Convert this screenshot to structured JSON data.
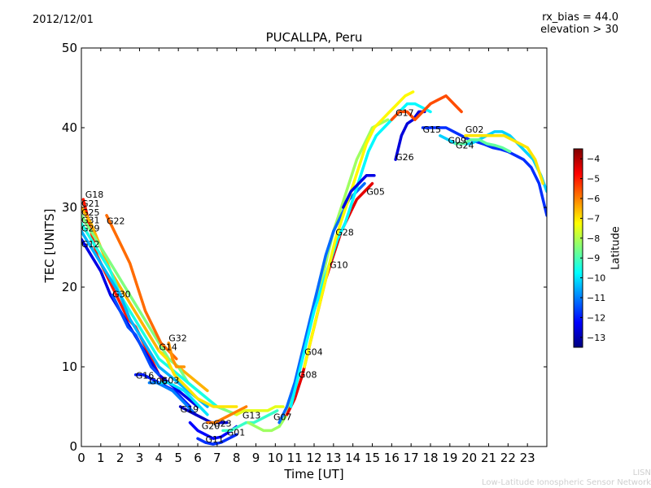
{
  "header": {
    "date": "2012/12/01",
    "rx_bias": "rx_bias = 44.0",
    "elevation": "elevation > 30"
  },
  "footer": {
    "line1": "LISN",
    "line2": "Low-Latitude Ionospheric Sensor Network"
  },
  "colorbar": {
    "label": "Latitude",
    "min": -13.5,
    "max": -3.5,
    "ticks": [
      -4,
      -5,
      -6,
      -7,
      -8,
      -9,
      -10,
      -11,
      -12,
      -13
    ],
    "colors": [
      "#00007f",
      "#0000ff",
      "#007fff",
      "#00ffff",
      "#7fff7f",
      "#ffff00",
      "#ff7f00",
      "#ff0000",
      "#7f0000"
    ]
  },
  "chart_data": {
    "type": "line",
    "title": "PUCALLPA, Peru",
    "xlabel": "Time [UT]",
    "ylabel": "TEC [UNITS]",
    "xlim": [
      0,
      24
    ],
    "ylim": [
      0,
      50
    ],
    "xticks": [
      0,
      1,
      2,
      3,
      4,
      5,
      6,
      7,
      8,
      9,
      10,
      11,
      12,
      13,
      14,
      15,
      16,
      17,
      18,
      19,
      20,
      21,
      22,
      23
    ],
    "yticks": [
      0,
      10,
      20,
      30,
      40,
      50
    ],
    "series": [
      {
        "name": "G18",
        "lat": -5.0,
        "label_at": [
          0.2,
          31.2
        ],
        "x": [
          0.1,
          0.4,
          0.8,
          1.2,
          1.6,
          2.0,
          2.4,
          2.8,
          3.2,
          3.6,
          4.0,
          4.4
        ],
        "y": [
          31,
          28,
          24,
          22,
          20,
          18,
          16,
          15,
          13,
          11,
          9,
          8
        ]
      },
      {
        "name": "G21",
        "lat": -6.5,
        "label_at": [
          0.0,
          30.1
        ],
        "x": [
          0.0,
          0.5,
          1.0,
          1.5,
          2.0,
          2.5,
          3.0,
          3.5,
          4.0,
          4.5,
          5.0,
          5.5,
          6.0,
          6.5
        ],
        "y": [
          30,
          28,
          25,
          22,
          20,
          18,
          16,
          14,
          12,
          11,
          10,
          9,
          8,
          7
        ]
      },
      {
        "name": "G25",
        "lat": -8.5,
        "label_at": [
          0.0,
          29.0
        ],
        "x": [
          0.0,
          0.5,
          1.0,
          1.5,
          2.0,
          2.5,
          3.0,
          3.5,
          4.0,
          4.5,
          5.0,
          5.5,
          6.0,
          6.5,
          7.0,
          7.5,
          8.0
        ],
        "y": [
          29,
          27,
          25,
          23,
          21,
          19,
          17,
          15,
          13,
          11,
          10,
          8,
          7,
          6,
          5,
          4.5,
          4
        ]
      },
      {
        "name": "G31",
        "lat": -9.5,
        "label_at": [
          0.0,
          28.0
        ],
        "x": [
          0.0,
          0.5,
          1.0,
          1.5,
          2.0,
          2.5,
          3.0,
          3.5,
          4.0,
          4.5,
          5.0,
          5.5,
          6.0,
          6.5,
          7.0
        ],
        "y": [
          28,
          26,
          24,
          22,
          19,
          17,
          15,
          13,
          11,
          10,
          9,
          8,
          7,
          6,
          5
        ]
      },
      {
        "name": "G29",
        "lat": -10.5,
        "label_at": [
          0.0,
          27.0
        ],
        "x": [
          0.0,
          0.5,
          1.0,
          1.5,
          2.0,
          2.5,
          3.0,
          3.5,
          4.0,
          4.5,
          5.0,
          5.5,
          6.0,
          6.5
        ],
        "y": [
          27,
          25,
          23,
          21,
          19,
          16,
          14,
          12,
          10,
          9,
          8,
          7,
          6,
          5
        ]
      },
      {
        "name": "G22",
        "lat": -5.8,
        "label_at": [
          1.3,
          27.9
        ],
        "x": [
          1.3,
          1.7,
          2.1,
          2.5,
          2.9,
          3.3,
          3.7,
          4.1,
          4.5,
          4.9
        ],
        "y": [
          29,
          27,
          25,
          23,
          20,
          17,
          15,
          13,
          12,
          11
        ]
      },
      {
        "name": "G12",
        "lat": -12.5,
        "label_at": [
          0.0,
          25.0
        ],
        "x": [
          0.0,
          0.5,
          1.0,
          1.5,
          2.0,
          2.5,
          3.0,
          3.5,
          4.0,
          4.5,
          5.0,
          5.5,
          6.0
        ],
        "y": [
          26,
          24,
          22,
          19,
          17,
          15,
          13,
          11,
          9,
          8,
          7,
          6,
          5
        ]
      },
      {
        "name": "G30",
        "lat": -11.5,
        "label_at": [
          1.6,
          18.7
        ],
        "x": [
          1.6,
          2.0,
          2.4,
          2.8,
          3.2,
          3.6,
          4.0
        ],
        "y": [
          19,
          17,
          15,
          14,
          12,
          10,
          9
        ]
      },
      {
        "name": "G32",
        "lat": -6.2,
        "label_at": [
          4.5,
          13.2
        ],
        "x": [
          4.5,
          4.7,
          4.9,
          5.1,
          5.3
        ],
        "y": [
          13,
          11,
          10,
          10,
          10
        ]
      },
      {
        "name": "G14",
        "lat": -7.0,
        "label_at": [
          4.0,
          12.1
        ],
        "x": [
          4.0,
          4.4,
          4.8,
          5.2,
          5.6,
          6.0,
          6.4,
          6.8,
          7.2,
          7.6,
          8.0
        ],
        "y": [
          12,
          11,
          9,
          8,
          7,
          6,
          5.5,
          5,
          5,
          5,
          5
        ]
      },
      {
        "name": "G16",
        "lat": -12.0,
        "label_at": [
          2.8,
          8.5
        ],
        "x": [
          2.8,
          3.2,
          3.6,
          4.0,
          4.4,
          4.8,
          5.2,
          5.6
        ],
        "y": [
          9,
          9,
          8.5,
          8,
          7.5,
          7,
          6,
          5
        ]
      },
      {
        "name": "G06",
        "lat": -11.0,
        "label_at": [
          3.5,
          7.8
        ],
        "x": [
          3.5,
          3.9,
          4.3,
          4.7,
          5.1,
          5.5,
          5.9
        ],
        "y": [
          8,
          8,
          7.5,
          7,
          6,
          5,
          4
        ]
      },
      {
        "name": "G03",
        "lat": -10.0,
        "label_at": [
          4.1,
          7.9
        ],
        "x": [
          4.1,
          4.5,
          4.9,
          5.3,
          5.7,
          6.1,
          6.5
        ],
        "y": [
          8,
          8,
          7.5,
          7,
          6,
          5,
          4
        ]
      },
      {
        "name": "G19",
        "lat": -12.8,
        "label_at": [
          5.1,
          4.3
        ],
        "x": [
          5.1,
          5.5,
          5.9,
          6.3,
          6.7,
          7.1,
          7.5
        ],
        "y": [
          5,
          4.5,
          4,
          3.5,
          3,
          3,
          3
        ]
      },
      {
        "name": "G20",
        "lat": -12.2,
        "label_at": [
          6.2,
          2.2
        ],
        "x": [
          5.6,
          6.0,
          6.4,
          6.8,
          7.2,
          7.6,
          8.0
        ],
        "y": [
          3,
          2,
          1.5,
          1,
          1.2,
          1.8,
          2.5
        ]
      },
      {
        "name": "G23",
        "lat": -6.0,
        "label_at": [
          6.8,
          2.5
        ],
        "x": [
          6.5,
          6.9,
          7.3,
          7.7,
          8.1,
          8.5
        ],
        "y": [
          3,
          3,
          3.5,
          4,
          4.5,
          5
        ]
      },
      {
        "name": "G11",
        "lat": -11.8,
        "label_at": [
          6.4,
          0.5
        ],
        "x": [
          6.0,
          6.4,
          6.8,
          7.2,
          7.6,
          8.0
        ],
        "y": [
          1,
          0.5,
          0.3,
          0.5,
          1,
          1.5
        ]
      },
      {
        "name": "G01",
        "lat": -9.2,
        "label_at": [
          7.5,
          1.4
        ],
        "x": [
          7.3,
          7.7,
          8.1,
          8.5,
          8.9,
          9.3,
          9.7,
          10.1
        ],
        "y": [
          2,
          2,
          2.5,
          3,
          3,
          3.5,
          4,
          4.5
        ]
      },
      {
        "name": "G13",
        "lat": -7.5,
        "label_at": [
          8.3,
          3.5
        ],
        "x": [
          8.0,
          8.4,
          8.8,
          9.2,
          9.6,
          10.0,
          10.4
        ],
        "y": [
          4,
          4.5,
          4.5,
          4.5,
          4.5,
          5,
          5
        ]
      },
      {
        "name": "G07",
        "lat": -8.2,
        "label_at": [
          9.9,
          3.3
        ],
        "x": [
          8.6,
          9.0,
          9.4,
          9.8,
          10.2,
          10.6,
          11.0,
          11.4,
          11.8,
          12.2,
          12.6,
          13.0,
          13.4,
          13.8,
          14.2,
          14.6,
          15.0,
          15.4,
          15.8
        ],
        "y": [
          3,
          2.5,
          2,
          2,
          2.5,
          4,
          7,
          11,
          15,
          19,
          23,
          27,
          30,
          33,
          36,
          38,
          40,
          40.5,
          41
        ]
      },
      {
        "name": "G08",
        "lat": -4.5,
        "label_at": [
          11.2,
          8.6
        ],
        "x": [
          10.6,
          11.0,
          11.4,
          11.8,
          12.2,
          12.6,
          13.0,
          13.4,
          13.8,
          14.2,
          14.6,
          15.0
        ],
        "y": [
          4,
          6,
          9,
          13,
          17,
          21,
          24,
          27,
          29,
          31,
          32,
          33
        ]
      },
      {
        "name": "G04",
        "lat": -11.2,
        "label_at": [
          11.5,
          11.5
        ],
        "x": [
          10.2,
          10.6,
          11.0,
          11.4,
          11.8,
          12.2,
          12.6,
          13.0,
          13.4,
          13.8,
          14.2,
          14.6
        ],
        "y": [
          3,
          5,
          8,
          12,
          16,
          20,
          24,
          27,
          29,
          31,
          32,
          33
        ]
      },
      {
        "name": "G10",
        "lat": -9.8,
        "label_at": [
          12.8,
          22.4
        ],
        "x": [
          10.8,
          11.2,
          11.6,
          12.0,
          12.4,
          12.8,
          13.2,
          13.6,
          14.0,
          14.4,
          14.8,
          15.2,
          15.6,
          16.0,
          16.4,
          16.8,
          17.2,
          17.6,
          18.0
        ],
        "y": [
          5,
          9,
          13,
          17,
          20,
          23,
          26,
          28,
          31,
          34,
          37,
          39,
          40,
          41,
          42,
          43,
          43,
          42.5,
          42
        ]
      },
      {
        "name": "G28",
        "lat": -7.2,
        "label_at": [
          13.1,
          26.5
        ],
        "x": [
          11.5,
          11.9,
          12.3,
          12.7,
          13.1,
          13.5,
          13.9,
          14.3,
          14.7,
          15.1,
          15.5,
          15.9,
          16.3,
          16.7,
          17.1
        ],
        "y": [
          10,
          14,
          18,
          22,
          26,
          29,
          32,
          35,
          38,
          40,
          41,
          42,
          43,
          44,
          44.5
        ]
      },
      {
        "name": "G05",
        "lat": -12.5,
        "label_at": [
          14.7,
          31.6
        ],
        "x": [
          13.5,
          13.9,
          14.3,
          14.7,
          15.1
        ],
        "y": [
          30,
          32,
          33,
          34,
          34
        ]
      },
      {
        "name": "G26",
        "lat": -12.6,
        "label_at": [
          16.2,
          35.9
        ],
        "x": [
          16.2,
          16.5,
          16.8,
          17.1,
          17.4,
          17.7
        ],
        "y": [
          36,
          39,
          40.5,
          41,
          42,
          42
        ]
      },
      {
        "name": "G17",
        "lat": -5.5,
        "label_at": [
          16.2,
          41.5
        ],
        "x": [
          16.0,
          16.4,
          16.8,
          17.2,
          17.6,
          18.0,
          18.4,
          18.8,
          19.2,
          19.6
        ],
        "y": [
          41,
          42,
          42,
          41,
          42,
          43,
          43.5,
          44,
          43,
          42
        ]
      },
      {
        "name": "G15",
        "lat": -11.8,
        "label_at": [
          17.6,
          39.4
        ],
        "x": [
          17.6,
          18.0,
          18.4,
          18.8,
          19.2,
          19.6,
          20.0,
          20.4,
          20.8,
          21.2,
          21.6,
          22.0,
          22.4,
          22.8,
          23.2,
          23.6,
          24.0
        ],
        "y": [
          40,
          40,
          40,
          40,
          39.5,
          39,
          38.5,
          38.2,
          37.9,
          37.5,
          37.3,
          37,
          36.5,
          36,
          35,
          33,
          29
        ]
      },
      {
        "name": "G09",
        "lat": -10.2,
        "label_at": [
          18.9,
          38.0
        ],
        "x": [
          18.5,
          18.9,
          19.3,
          19.7,
          20.1,
          20.5,
          20.9,
          21.3,
          21.7,
          22.1,
          22.5,
          22.9,
          23.3,
          23.7,
          24.0
        ],
        "y": [
          39,
          38.5,
          38,
          38,
          38,
          38.5,
          39,
          39.5,
          39.5,
          39,
          38,
          37,
          36,
          34,
          32
        ]
      },
      {
        "name": "G24",
        "lat": -8.8,
        "label_at": [
          19.3,
          37.4
        ],
        "x": [
          19.3,
          19.7,
          20.1,
          20.5,
          20.9,
          21.3,
          21.7,
          22.1
        ],
        "y": [
          38,
          38,
          38.5,
          38.5,
          38,
          37.8,
          37.5,
          37
        ]
      },
      {
        "name": "G02",
        "lat": -7.0,
        "label_at": [
          19.8,
          39.4
        ],
        "x": [
          19.8,
          20.2,
          20.6,
          21.0,
          21.4,
          21.8,
          22.2,
          22.6,
          23.0,
          23.4,
          23.8
        ],
        "y": [
          39,
          39,
          39,
          39,
          39,
          39,
          38.5,
          38,
          37.5,
          36,
          33
        ]
      }
    ]
  }
}
